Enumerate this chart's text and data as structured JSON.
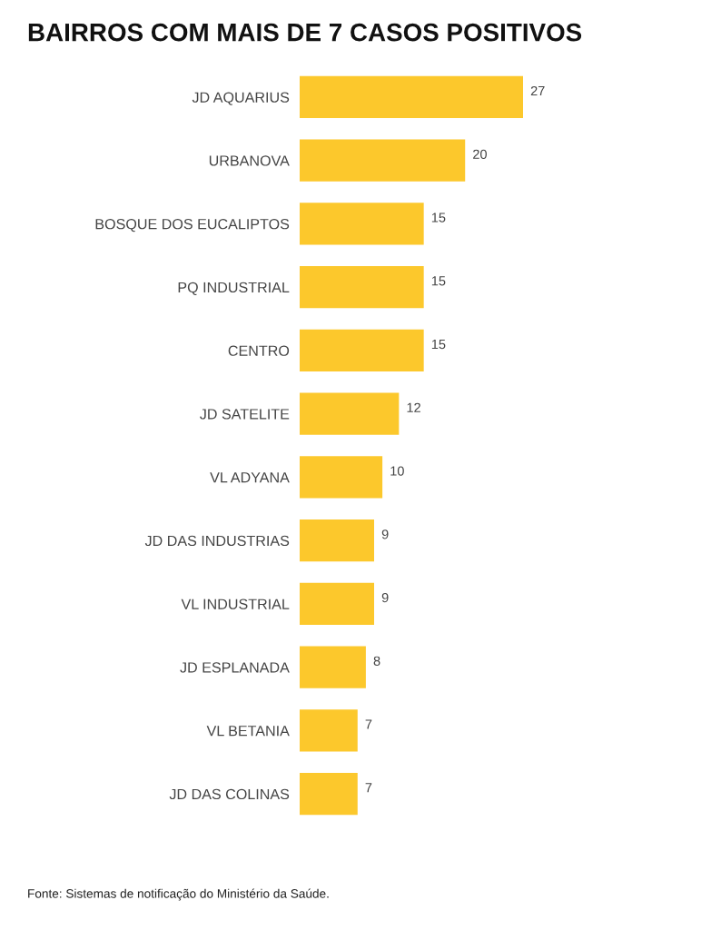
{
  "chart_data": {
    "type": "bar",
    "orientation": "horizontal",
    "title": "BAIRROS COM MAIS DE 7 CASOS POSITIVOS",
    "categories": [
      "JD AQUARIUS",
      "URBANOVA",
      "BOSQUE DOS EUCALIPTOS",
      "PQ INDUSTRIAL",
      "CENTRO",
      "JD SATELITE",
      "VL ADYANA",
      "JD DAS INDUSTRIAS",
      "VL INDUSTRIAL",
      "JD ESPLANADA",
      "VL BETANIA",
      "JD DAS COLINAS"
    ],
    "values": [
      27,
      20,
      15,
      15,
      15,
      12,
      10,
      9,
      9,
      8,
      7,
      7
    ],
    "color": "#fcc82c",
    "data_labels": true,
    "tick_labels": "y",
    "grid": false,
    "legend": false,
    "annotations": [
      "Fonte: Sistemas de notificação do Ministério da Saúde."
    ]
  }
}
